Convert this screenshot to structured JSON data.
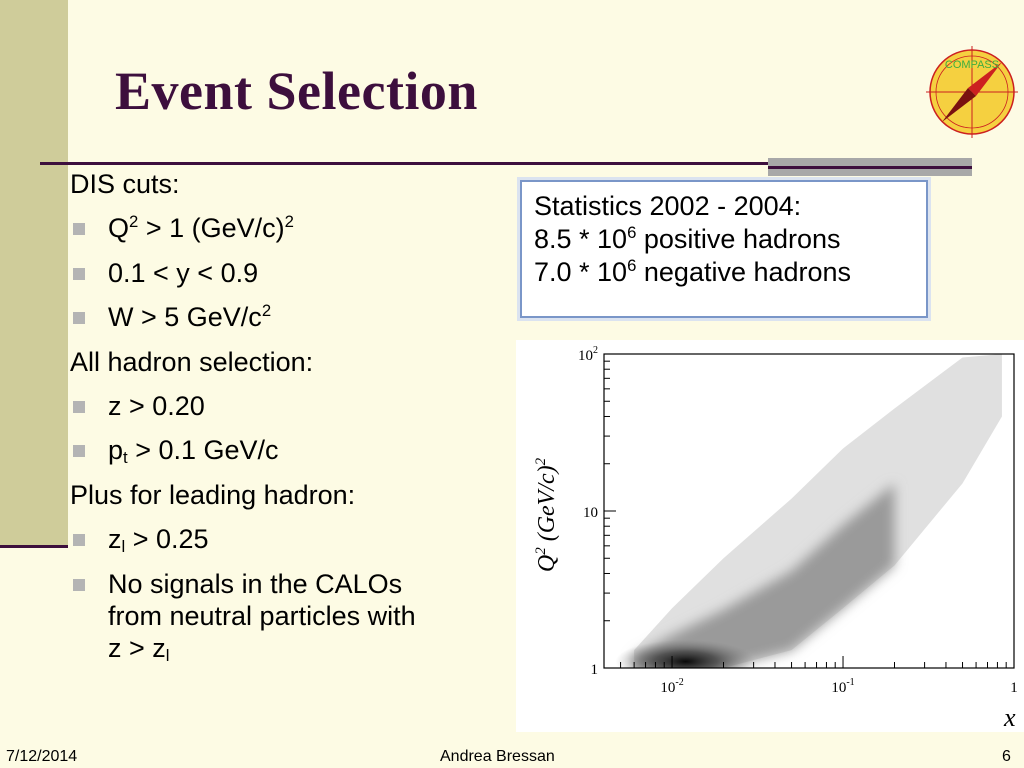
{
  "slide": {
    "title": "Event Selection",
    "logo_text": "COMPASS"
  },
  "content": {
    "dis_heading": "DIS cuts:",
    "dis_cut1": {
      "pre": "Q",
      "sup": "2",
      "post": " > 1 (GeV/c)",
      "sup2": "2"
    },
    "dis_cut2": "0.1 < y < 0.9",
    "dis_cut3": {
      "pre": "W > 5 GeV/c",
      "sup": "2"
    },
    "hadron_heading": "All hadron selection:",
    "hadron_cut1": "z > 0.20",
    "hadron_cut2": {
      "pre": "p",
      "sub": "t",
      "post": " > 0.1 GeV/c"
    },
    "leading_heading": "Plus for leading hadron:",
    "leading_cut1": {
      "pre": "z",
      "sub": "l",
      "post": " > 0.25"
    },
    "leading_cut2": {
      "line1": "No signals in the CALOs",
      "line2": "from neutral particles with",
      "line3_pre": "z > z",
      "line3_sub": "l"
    }
  },
  "stats": {
    "line1": "Statistics 2002 - 2004:",
    "line2": {
      "pre": "8.5 * 10",
      "sup": "6",
      "post": " positive hadrons"
    },
    "line3": {
      "pre": "7.0 * 10",
      "sup": "6",
      "post": " negative hadrons"
    }
  },
  "chart_data": {
    "type": "heatmap",
    "xscale": "log",
    "yscale": "log",
    "xlim": [
      0.004,
      1
    ],
    "ylim": [
      1,
      100
    ],
    "xlabel": "x",
    "ylabel": {
      "pre": "Q",
      "sup": "2",
      "post": " (GeV/c)",
      "sup2": "2"
    },
    "x_ticks": [
      {
        "value": 0.01,
        "base": "10",
        "exp": "-2"
      },
      {
        "value": 0.1,
        "base": "10",
        "exp": "-1"
      },
      {
        "value": 1,
        "base": "1",
        "exp": ""
      }
    ],
    "y_ticks": [
      {
        "value": 1,
        "base": "1",
        "exp": ""
      },
      {
        "value": 10,
        "base": "10",
        "exp": ""
      },
      {
        "value": 100,
        "base": "10",
        "exp": "2"
      }
    ],
    "density_band": [
      {
        "x": 0.006,
        "q2_low": 1.0,
        "q2_high": 1.3
      },
      {
        "x": 0.01,
        "q2_low": 1.0,
        "q2_high": 2.4
      },
      {
        "x": 0.02,
        "q2_low": 1.0,
        "q2_high": 5.0
      },
      {
        "x": 0.05,
        "q2_low": 1.3,
        "q2_high": 12
      },
      {
        "x": 0.1,
        "q2_low": 2.4,
        "q2_high": 25
      },
      {
        "x": 0.2,
        "q2_low": 4.5,
        "q2_high": 45
      },
      {
        "x": 0.5,
        "q2_low": 15,
        "q2_high": 95
      },
      {
        "x": 0.85,
        "q2_low": 40,
        "q2_high": 100
      }
    ],
    "peak_region": {
      "x": 0.012,
      "q2": 1.1
    }
  },
  "footer": {
    "date": "7/12/2014",
    "author": "Andrea Bressan",
    "page": "6"
  },
  "colors": {
    "title": "#3d0f3d",
    "band": "#cfcc9a",
    "background": "#fdfbe4",
    "bullet": "#b4b4b4",
    "stats_border": "#7a96c8",
    "logo_fill": "#f5d040",
    "logo_needle": "#cc2020"
  }
}
